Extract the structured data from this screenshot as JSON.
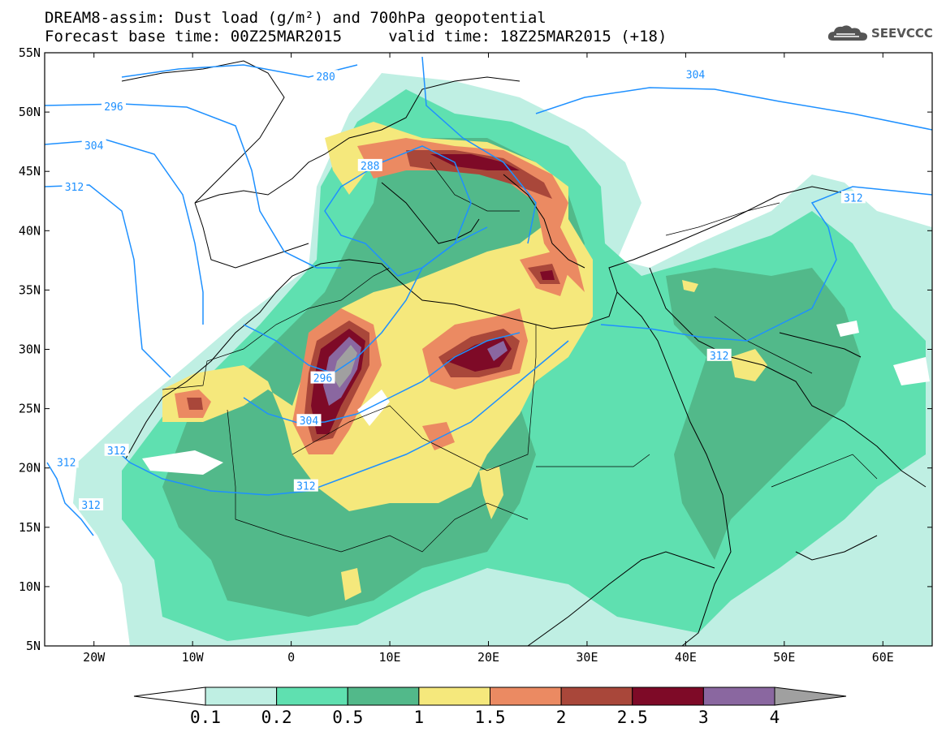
{
  "header": {
    "title_line1": "DREAM8-assim: Dust load (g/m²) and 700hPa geopotential",
    "title_line2": "Forecast base time: 00Z25MAR2015     valid time: 18Z25MAR2015 (+18)"
  },
  "logo": {
    "text": "SEEVCCC",
    "icon": "cloud-icon"
  },
  "map": {
    "type": "filled-contour-map",
    "variable": "Dust load (g/m²)",
    "overlay": "700hPa geopotential",
    "lon_range": [
      -25,
      65
    ],
    "lat_range": [
      5,
      55
    ],
    "x_ticks": [
      "20W",
      "10W",
      "0",
      "10E",
      "20E",
      "30E",
      "40E",
      "50E",
      "60E"
    ],
    "x_tick_values": [
      -20,
      -10,
      0,
      10,
      20,
      30,
      40,
      50,
      60
    ],
    "y_ticks": [
      "5N",
      "10N",
      "15N",
      "20N",
      "25N",
      "30N",
      "35N",
      "40N",
      "45N",
      "50N",
      "55N"
    ],
    "y_tick_values": [
      5,
      10,
      15,
      20,
      25,
      30,
      35,
      40,
      45,
      50,
      55
    ],
    "contour_labels": [
      {
        "text": "280",
        "lon": 3.5,
        "lat": 53
      },
      {
        "text": "296",
        "lon": -18,
        "lat": 50.5
      },
      {
        "text": "304",
        "lon": -20,
        "lat": 47.2
      },
      {
        "text": "312",
        "lon": -22,
        "lat": 43.7
      },
      {
        "text": "304",
        "lon": 41,
        "lat": 53.2
      },
      {
        "text": "288",
        "lon": 8,
        "lat": 45.5
      },
      {
        "text": "312",
        "lon": 57,
        "lat": 42.8
      },
      {
        "text": "296",
        "lon": 3.2,
        "lat": 27.6
      },
      {
        "text": "304",
        "lon": 1.8,
        "lat": 24.0
      },
      {
        "text": "312",
        "lon": 43.4,
        "lat": 29.5
      },
      {
        "text": "312",
        "lon": -17.7,
        "lat": 21.5
      },
      {
        "text": "312",
        "lon": -22.8,
        "lat": 20.5
      },
      {
        "text": "312",
        "lon": 1.5,
        "lat": 18.5
      },
      {
        "text": "312",
        "lon": -20.3,
        "lat": 16.9
      }
    ]
  },
  "colorbar": {
    "levels": [
      "0.1",
      "0.2",
      "0.5",
      "1",
      "1.5",
      "2",
      "2.5",
      "3",
      "4"
    ],
    "colors": [
      "#ffffff",
      "#bfefe3",
      "#5fe0b0",
      "#52b98a",
      "#f5e87c",
      "#eb8a62",
      "#a9473a",
      "#7e0a27",
      "#8a67a0",
      "#a0a0a0"
    ]
  }
}
